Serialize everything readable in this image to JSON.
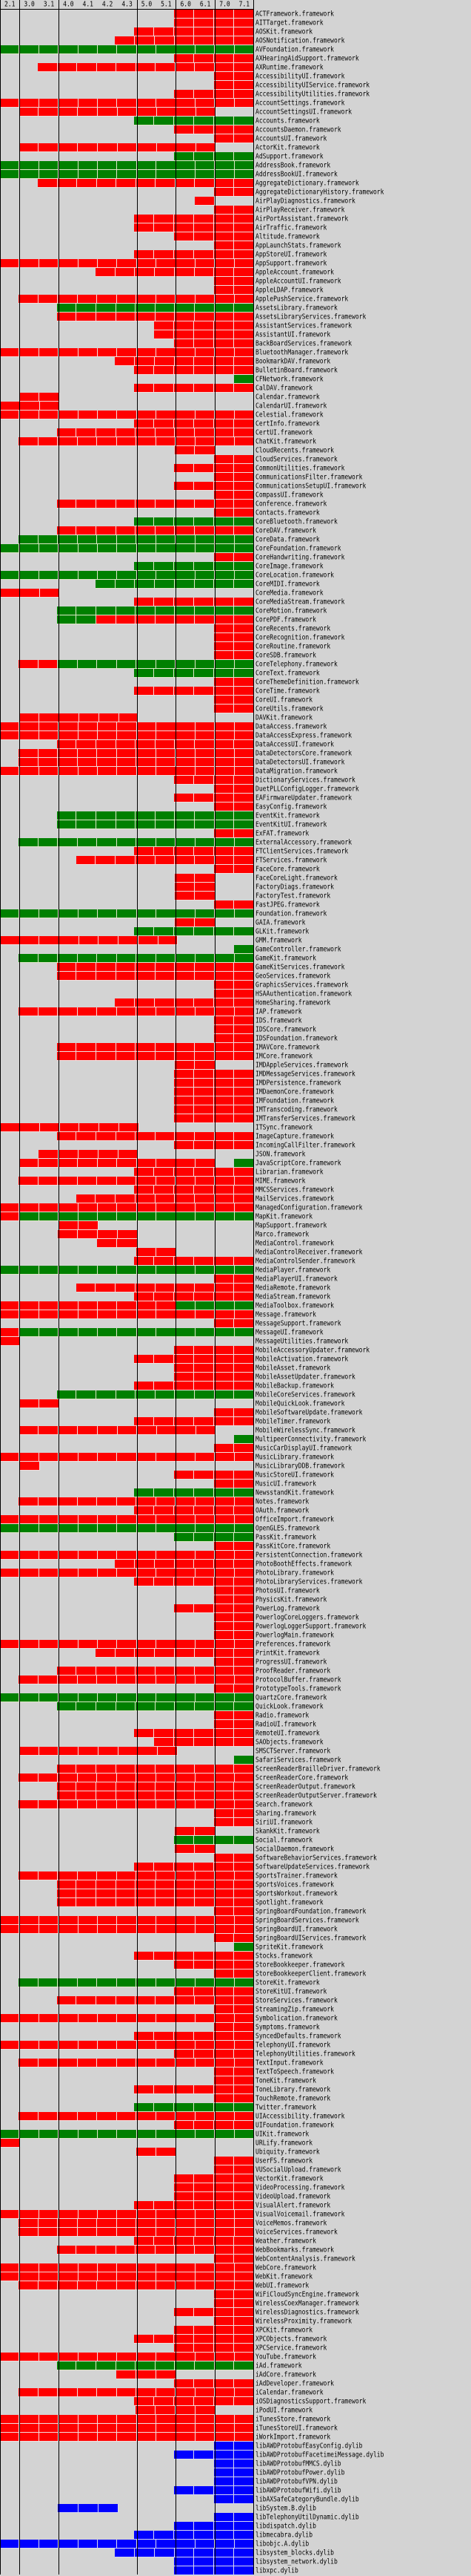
{
  "colors": {
    "private": "#ff0000",
    "public": "#008000",
    "dylib": "#0000ff",
    "absent": "#d3d3d3"
  },
  "versions": [
    "2.1",
    "3.0",
    "3.1",
    "4.0",
    "4.1",
    "4.2",
    "4.3",
    "5.0",
    "5.1",
    "6.0",
    "6.1",
    "7.0",
    "7.1"
  ],
  "rows": [
    [
      "ACTFramework.framework",
      ".........RRRR"
    ],
    [
      "AITTarget.framework",
      ".........RRRR"
    ],
    [
      "AOSKit.framework",
      ".......RRRRRR"
    ],
    [
      "AOSNotification.framework",
      "......RRRRRRR"
    ],
    [
      "AVFoundation.framework",
      "GGGGGGGGGGGGG"
    ],
    [
      "AXHearingAidSupport.framework",
      ".........RRRR"
    ],
    [
      "AXRuntime.framework",
      "..RRRRRRRRRRR"
    ],
    [
      "AccessibilityUI.framework",
      "...........RR"
    ],
    [
      "AccessibilityUIService.framework",
      "...........RR"
    ],
    [
      "AccessibilityUtilities.framework",
      ".........RRRR"
    ],
    [
      "AccountSettings.framework",
      "RRRRRRRRRRRRR"
    ],
    [
      "AccountSettingsUI.framework",
      ".RRRRRRRRRR.."
    ],
    [
      "Accounts.framework",
      ".......GGGGGG"
    ],
    [
      "AccountsDaemon.framework",
      ".........RRRR"
    ],
    [
      "AccountsUI.framework",
      "...........RR"
    ],
    [
      "ActorKit.framework",
      ".RRRRRRRRRR.."
    ],
    [
      "AdSupport.framework",
      ".........GGGG"
    ],
    [
      "AddressBook.framework",
      "GGGGGGGGGGGGG"
    ],
    [
      "AddressBookUI.framework",
      "GGGGGGGGGGGGG"
    ],
    [
      "AggregateDictionary.framework",
      "..RRRRRRRRRRR"
    ],
    [
      "AggregateDictionaryHistory.framework",
      "...........RR"
    ],
    [
      "AirPlayDiagnostics.framework",
      "..........R.."
    ],
    [
      "AirPlayReceiver.framework",
      "...........RR"
    ],
    [
      "AirPortAssistant.framework",
      ".......RRRRRR"
    ],
    [
      "AirTraffic.framework",
      ".......RRRRRR"
    ],
    [
      "Altitude.framework",
      ".........RRRR"
    ],
    [
      "AppLaunchStats.framework",
      "...........RR"
    ],
    [
      "AppStoreUI.framework",
      ".......RRRRRR"
    ],
    [
      "AppSupport.framework",
      "RRRRRRRRRRRRR"
    ],
    [
      "AppleAccount.framework",
      ".....RRRRRRRR"
    ],
    [
      "AppleAccountUI.framework",
      "...........RR"
    ],
    [
      "AppleLDAP.framework",
      "...........RR"
    ],
    [
      "ApplePushService.framework",
      ".RRRRRRRRRRRR"
    ],
    [
      "AssetsLibrary.framework",
      "...GGGGGGGGGG"
    ],
    [
      "AssetsLibraryServices.framework",
      "...RRRRRRRRRR"
    ],
    [
      "AssistantServices.framework",
      "........RRRRR"
    ],
    [
      "AssistantUI.framework",
      "........RRRRR"
    ],
    [
      "BackBoardServices.framework",
      ".........RRRR"
    ],
    [
      "BluetoothManager.framework",
      "RRRRRRRRRRRRR"
    ],
    [
      "BookmarkDAV.framework",
      "......RRRRRRR"
    ],
    [
      "BulletinBoard.framework",
      ".......RRRRRR"
    ],
    [
      "CFNetwork.framework",
      "............G"
    ],
    [
      "CalDAV.framework",
      ".......RRRRRR"
    ],
    [
      "Calendar.framework",
      ".RR.........."
    ],
    [
      "CalendarUI.framework",
      "RRR.........."
    ],
    [
      "Celestial.framework",
      "RRRRRRRRRRRRR"
    ],
    [
      "CertInfo.framework",
      ".......RRRRRR"
    ],
    [
      "CertUI.framework",
      "...RRRRRRRRRR"
    ],
    [
      "ChatKit.framework",
      ".RRRRRRRRRRRR"
    ],
    [
      "CloudRecents.framework",
      ".........RR.."
    ],
    [
      "CloudServices.framework",
      "...........RR"
    ],
    [
      "CommonUtilities.framework",
      ".........RRRR"
    ],
    [
      "CommunicationsFilter.framework",
      "...........RR"
    ],
    [
      "CommunicationsSetupUI.framework",
      ".........RRRR"
    ],
    [
      "CompassUI.framework",
      "...........RR"
    ],
    [
      "Conference.framework",
      "...RRRRRRRRRR"
    ],
    [
      "Contacts.framework",
      "...........RR"
    ],
    [
      "CoreBluetooth.framework",
      ".......GGGGGG"
    ],
    [
      "CoreDAV.framework",
      "...RRRRRRRRRR"
    ],
    [
      "CoreData.framework",
      ".GGGGGGGGGGGG"
    ],
    [
      "CoreFoundation.framework",
      "GGGGGGGGGGGGG"
    ],
    [
      "CoreHandwriting.framework",
      "...........RR"
    ],
    [
      "CoreImage.framework",
      ".......GGGGGG"
    ],
    [
      "CoreLocation.framework",
      "GGGGGGGGGGGGG"
    ],
    [
      "CoreMIDI.framework",
      ".....GGGGGGGG"
    ],
    [
      "CoreMedia.framework",
      "RRR.........."
    ],
    [
      "CoreMediaStream.framework",
      ".......RRRRRR"
    ],
    [
      "CoreMotion.framework",
      "...GGGGGGGGGG"
    ],
    [
      "CorePDF.framework",
      "...GGRRRRRRRR"
    ],
    [
      "CoreRecents.framework",
      "...........RR"
    ],
    [
      "CoreRecognition.framework",
      "...........RR"
    ],
    [
      "CoreRoutine.framework",
      "...........RR"
    ],
    [
      "CoreSDB.framework",
      "...........RR"
    ],
    [
      "CoreTelephony.framework",
      ".RRGGGGGGGGGG"
    ],
    [
      "CoreText.framework",
      ".......GGGGGG"
    ],
    [
      "CoreThemeDefinition.framework",
      "...........RR"
    ],
    [
      "CoreTime.framework",
      ".......RRRRRR"
    ],
    [
      "CoreUI.framework",
      "...........RR"
    ],
    [
      "CoreUtils.framework",
      "...........RR"
    ],
    [
      "DAVKit.framework",
      ".RRRRRR......"
    ],
    [
      "DataAccess.framework",
      "RRRRRRRRRRRRR"
    ],
    [
      "DataAccessExpress.framework",
      "RRRRRRRRRRRRR"
    ],
    [
      "DataAccessUI.framework",
      "...RRRRRRRRRR"
    ],
    [
      "DataDetectorsCore.framework",
      ".RRRRRRRRRRRR"
    ],
    [
      "DataDetectorsUI.framework",
      ".RRRRRRRRRRRR"
    ],
    [
      "DataMigration.framework",
      "RRRRRRRRRRRRR"
    ],
    [
      "DictionaryServices.framework",
      ".........RRRR"
    ],
    [
      "DuetPLLConfigLogger.framework",
      "...........RR"
    ],
    [
      "EAFirmwareUpdater.framework",
      ".........RRRR"
    ],
    [
      "EasyConfig.framework",
      "...........RR"
    ],
    [
      "EventKit.framework",
      "...GGGGGGGGGG"
    ],
    [
      "EventKitUI.framework",
      "...GGGGGGGGGG"
    ],
    [
      "ExFAT.framework",
      "...........RR"
    ],
    [
      "ExternalAccessory.framework",
      ".GGGGGGGGGGGG"
    ],
    [
      "FTClientServices.framework",
      ".......RRRRRR"
    ],
    [
      "FTServices.framework",
      "....RRRRRRRRR"
    ],
    [
      "FaceCore.framework",
      "...........RR"
    ],
    [
      "FaceCoreLight.framework",
      ".........RR.."
    ],
    [
      "FactoryDiags.framework",
      ".........RR.."
    ],
    [
      "FactoryTest.framework",
      ".........RR.."
    ],
    [
      "FastJPEG.framework",
      "...........RR"
    ],
    [
      "Foundation.framework",
      "GGGGGGGGGGGGG"
    ],
    [
      "GAIA.framework",
      ".........RR.."
    ],
    [
      "GLKit.framework",
      ".......GGGGGG"
    ],
    [
      "GMM.framework",
      "RRRRRRRRR...."
    ],
    [
      "GameController.framework",
      "............G"
    ],
    [
      "GameKit.framework",
      ".GGGGGGGGGGGG"
    ],
    [
      "GameKitServices.framework",
      "...RRRRRRRRRR"
    ],
    [
      "GeoServices.framework",
      "...RRRRRRRRRR"
    ],
    [
      "GraphicsServices.framework",
      "...........RR"
    ],
    [
      "HSAAuthentication.framework",
      "...........RR"
    ],
    [
      "HomeSharing.framework",
      "......RRRRRRR"
    ],
    [
      "IAP.framework",
      ".RRRRRRRRRRRR"
    ],
    [
      "IDS.framework",
      "...........RR"
    ],
    [
      "IDSCore.framework",
      "...........RR"
    ],
    [
      "IDSFoundation.framework",
      "...........RR"
    ],
    [
      "IMAVCore.framework",
      "...RRRRRRRRRR"
    ],
    [
      "IMCore.framework",
      "...RRRRRRRRRR"
    ],
    [
      "IMDAppleServices.framework",
      ".........RR.."
    ],
    [
      "IMDMessageServices.framework",
      ".........RRRR"
    ],
    [
      "IMDPersistence.framework",
      ".........RRRR"
    ],
    [
      "IMDaemonCore.framework",
      ".........RRRR"
    ],
    [
      "IMFoundation.framework",
      ".........RRRR"
    ],
    [
      "IMTranscoding.framework",
      ".........RRRR"
    ],
    [
      "IMTransferServices.framework",
      ".........RRRR"
    ],
    [
      "ITSync.framework",
      "RRRRRRR......"
    ],
    [
      "ImageCapture.framework",
      "...RRRRRRRRRR"
    ],
    [
      "IncomingCallFilter.framework",
      ".........RRRR"
    ],
    [
      "JSON.framework",
      "..RRRRR......"
    ],
    [
      "JavaScriptCore.framework",
      ".RRRRRRRRRR.G"
    ],
    [
      "Librarian.framework",
      ".......RRRRRR"
    ],
    [
      "MIME.framework",
      ".RRRRRRRRRRRR"
    ],
    [
      "MMCSServices.framework",
      ".......RRRRRR"
    ],
    [
      "MailServices.framework",
      "....RRRRRRRRR"
    ],
    [
      "ManagedConfiguration.framework",
      "RRRRRRRRRRRRR"
    ],
    [
      "MapKit.framework",
      "RGGGGGGGGGGGG"
    ],
    [
      "MapSupport.framework",
      "...RR........"
    ],
    [
      "Marco.framework",
      "...RRRR......"
    ],
    [
      "MediaControl.framework",
      ".....RR......"
    ],
    [
      "MediaControlReceiver.framework",
      ".......RR...."
    ],
    [
      "MediaControlSender.framework",
      ".......RRRRRR"
    ],
    [
      "MediaPlayer.framework",
      "GGGGGGGGGGGGG"
    ],
    [
      "MediaPlayerUI.framework",
      "...........RR"
    ],
    [
      "MediaRemote.framework",
      "....RRRRRRRRR"
    ],
    [
      "MediaStream.framework",
      ".......RRRRRR"
    ],
    [
      "MediaToolbox.framework",
      "RRRRRRRRRGGGG"
    ],
    [
      "Message.framework",
      "RRRRRRRRRRRRR"
    ],
    [
      "MessageSupport.framework",
      "...........RR"
    ],
    [
      "MessageUI.framework",
      "RGGGGGGGGGGGG"
    ],
    [
      "MessageUtilities.framework",
      "R............"
    ],
    [
      "MobileAccessoryUpdater.framework",
      ".........RRRR"
    ],
    [
      "MobileActivation.framework",
      ".......RRRRRR"
    ],
    [
      "MobileAsset.framework",
      ".........RRRR"
    ],
    [
      "MobileAssetUpdater.framework",
      ".........RRRR"
    ],
    [
      "MobileBackup.framework",
      ".......RRRRRR"
    ],
    [
      "MobileCoreServices.framework",
      "...GGGGGGGGGG"
    ],
    [
      "MobileQuickLook.framework",
      ".RR.........."
    ],
    [
      "MobileSoftwareUpdate.framework",
      "...........RR"
    ],
    [
      "MobileTimer.framework",
      ".......RRRRRR"
    ],
    [
      "MobileWirelessSync.framework",
      ".RRRRRRRRRR.."
    ],
    [
      "MultipeerConnectivity.framework",
      "............G"
    ],
    [
      "MusicCarDisplayUI.framework",
      "...........RR"
    ],
    [
      "MusicLibrary.framework",
      "RRRRRRRRRRRRR"
    ],
    [
      "MusicLibraryDDB.framework",
      ".R..........."
    ],
    [
      "MusicStoreUI.framework",
      ".........RRRR"
    ],
    [
      "MusicUI.framework",
      "...........RR"
    ],
    [
      "NewsstandKit.framework",
      ".......GGGGGG"
    ],
    [
      "Notes.framework",
      ".RRRRRRRRRRRR"
    ],
    [
      "OAuth.framework",
      ".......RRRRRR"
    ],
    [
      "OfficeImport.framework",
      "RRRRRRRRRRRRR"
    ],
    [
      "OpenGLES.framework",
      "GGGGGGGGGGGGG"
    ],
    [
      "PassKit.framework",
      ".........GGGG"
    ],
    [
      "PassKitCore.framework",
      "...........RR"
    ],
    [
      "PersistentConnection.framework",
      "RRRRRRRRRRRRR"
    ],
    [
      "PhotoBoothEffects.framework",
      "......RRRRRRR"
    ],
    [
      "PhotoLibrary.framework",
      "RRRRRRRRRRRRR"
    ],
    [
      "PhotoLibraryServices.framework",
      ".......RRRRRR"
    ],
    [
      "PhotosUI.framework",
      "...........RR"
    ],
    [
      "PhysicsKit.framework",
      "...........RR"
    ],
    [
      "PowerLog.framework",
      ".........RRRR"
    ],
    [
      "PowerlogCoreLoggers.framework",
      "...........RR"
    ],
    [
      "PowerlogLoggerSupport.framework",
      "...........RR"
    ],
    [
      "PowerlogMain.framework",
      "...........RR"
    ],
    [
      "Preferences.framework",
      "RRRRRRRRRRRRR"
    ],
    [
      "PrintKit.framework",
      ".....RRRRRRRR"
    ],
    [
      "ProgressUI.framework",
      "...........RR"
    ],
    [
      "ProofReader.framework",
      "...RRRRRRRRRR"
    ],
    [
      "ProtocolBuffer.framework",
      ".RRRRRRRRRRRR"
    ],
    [
      "PrototypeTools.framework",
      "...........RR"
    ],
    [
      "QuartzCore.framework",
      "GGGGGGGGGGGGG"
    ],
    [
      "QuickLook.framework",
      "...GGGGGGGGGG"
    ],
    [
      "Radio.framework",
      "...........RR"
    ],
    [
      "RadioUI.framework",
      "...........RR"
    ],
    [
      "RemoteUI.framework",
      ".......RRRRRR"
    ],
    [
      "SAObjects.framework",
      "........RRRRR"
    ],
    [
      "SMSCTServer.framework",
      ".RRRRRRRR...."
    ],
    [
      "SafariServices.framework",
      "............G"
    ],
    [
      "ScreenReaderBrailleDriver.framework",
      "...RRRRRRRRRR"
    ],
    [
      "ScreenReaderCore.framework",
      ".RRRRRRRRRRRR"
    ],
    [
      "ScreenReaderOutput.framework",
      "...RRRRRRRRRR"
    ],
    [
      "ScreenReaderOutputServer.framework",
      "...RRRRRRRRRR"
    ],
    [
      "Search.framework",
      ".RRRRRRRRRRRR"
    ],
    [
      "Sharing.framework",
      "...........RR"
    ],
    [
      "SiriUI.framework",
      "...........RR"
    ],
    [
      "SkankKit.framework",
      ".........RR.."
    ],
    [
      "Social.framework",
      ".........GGGG"
    ],
    [
      "SocialDaemon.framework",
      ".........RR.."
    ],
    [
      "SoftwareBehaviorServices.framework",
      "...........RR"
    ],
    [
      "SoftwareUpdateServices.framework",
      ".......RRRRRR"
    ],
    [
      "SportsTrainer.framework",
      ".RRRRRRRRRRRR"
    ],
    [
      "SportsVoices.framework",
      "...RRRRRRRRRR"
    ],
    [
      "SportsWorkout.framework",
      "...RRRRRRRRRR"
    ],
    [
      "Spotlight.framework",
      "...RRRRRRRRRR"
    ],
    [
      "SpringBoardFoundation.framework",
      "...........RR"
    ],
    [
      "SpringBoardServices.framework",
      "RRRRRRRRRRRRR"
    ],
    [
      "SpringBoardUI.framework",
      "RRRRRRRRRRRRR"
    ],
    [
      "SpringBoardUIServices.framework",
      "...........RR"
    ],
    [
      "SpriteKit.framework",
      "............G"
    ],
    [
      "Stocks.framework",
      ".......RRRRRR"
    ],
    [
      "StoreBookkeeper.framework",
      ".........RRRR"
    ],
    [
      "StoreBookkeeperClient.framework",
      "...........RR"
    ],
    [
      "StoreKit.framework",
      ".GGGGGGGGGGGG"
    ],
    [
      "StoreKitUI.framework",
      ".........RRRR"
    ],
    [
      "StoreServices.framework",
      "...RRRRRRRRRR"
    ],
    [
      "StreamingZip.framework",
      "...........RR"
    ],
    [
      "Symbolication.framework",
      "RRRRRRRRRRRRR"
    ],
    [
      "Symptoms.framework",
      "...........RR"
    ],
    [
      "SyncedDefaults.framework",
      ".......RRRRRR"
    ],
    [
      "TelephonyUI.framework",
      "RRRRRRRRRRRRR"
    ],
    [
      "TelephonyUtilities.framework",
      ".........RRRR"
    ],
    [
      "TextInput.framework",
      ".RRRRRRRRRRRR"
    ],
    [
      "TextToSpeech.framework",
      "...........RR"
    ],
    [
      "ToneKit.framework",
      "...........RR"
    ],
    [
      "ToneLibrary.framework",
      ".......RRRRRR"
    ],
    [
      "TouchRemote.framework",
      "...........RR"
    ],
    [
      "Twitter.framework",
      ".......GGGGGG"
    ],
    [
      "UIAccessibility.framework",
      ".RRRRRRRRRRRR"
    ],
    [
      "UIFoundation.framework",
      ".........RRRR"
    ],
    [
      "UIKit.framework",
      "GGGGGGGGGGGGG"
    ],
    [
      "URLify.framework",
      "R............"
    ],
    [
      "Ubiquity.framework",
      ".......RR...."
    ],
    [
      "UserFS.framework",
      "...........RR"
    ],
    [
      "VUSocialUpload.framework",
      "...........RR"
    ],
    [
      "VectorKit.framework",
      ".........RRRR"
    ],
    [
      "VideoProcessing.framework",
      ".........RRRR"
    ],
    [
      "VideoUpload.framework",
      ".........RRRR"
    ],
    [
      "VisualAlert.framework",
      ".......RRRRRR"
    ],
    [
      "VisualVoicemail.framework",
      "RRRRRRRRRRRRR"
    ],
    [
      "VoiceMemos.framework",
      ".RRRRRRRRRRRR"
    ],
    [
      "VoiceServices.framework",
      ".RRRRRRRRRRRR"
    ],
    [
      "Weather.framework",
      ".......RRRRRR"
    ],
    [
      "WebBookmarks.framework",
      "...RRRRRRRRRR"
    ],
    [
      "WebContentAnalysis.framework",
      "...........RR"
    ],
    [
      "WebCore.framework",
      "RRRRRRRRRRRRR"
    ],
    [
      "WebKit.framework",
      "RRRRRRRRRRRRR"
    ],
    [
      "WebUI.framework",
      ".RRRRRRRRRRRR"
    ],
    [
      "WiFiCloudSyncEngine.framework",
      "...........RR"
    ],
    [
      "WirelessCoexManager.framework",
      "...........RR"
    ],
    [
      "WirelessDiagnostics.framework",
      ".........RRRR"
    ],
    [
      "WirelessProximity.framework",
      "...........RR"
    ],
    [
      "XPCKit.framework",
      ".........RRRR"
    ],
    [
      "XPCObjects.framework",
      ".......RRRRRR"
    ],
    [
      "XPCService.framework",
      ".........RRRR"
    ],
    [
      "YouTube.framework",
      "RRRRRRRRRRRRR"
    ],
    [
      "iAd.framework",
      "...GGGGGGGGGG"
    ],
    [
      "iAdCore.framework",
      "......RRR...."
    ],
    [
      "iAdDeveloper.framework",
      ".........RRRR"
    ],
    [
      "iCalendar.framework",
      ".RRRRRRRRRRRR"
    ],
    [
      "iOSDiagnosticsSupport.framework",
      ".......RRRRRR"
    ],
    [
      "iPodUI.framework",
      ".......RRRR.."
    ],
    [
      "iTunesStore.framework",
      "RRRRRRRRRRRRR"
    ],
    [
      "iTunesStoreUI.framework",
      "RRRRRRRRRRRRR"
    ],
    [
      "iWorkImport.framework",
      "RRRRRRRRRRRRR"
    ],
    [
      "libAWDProtobufEasyConfig.dylib",
      "...........BB"
    ],
    [
      "libAWDProtobufFacetimeiMessage.dylib",
      ".........BBBB"
    ],
    [
      "libAWDProtobufMMCS.dylib",
      "...........BB"
    ],
    [
      "libAWDProtobufPower.dylib",
      "...........BB"
    ],
    [
      "libAWDProtobufVPN.dylib",
      "...........BB"
    ],
    [
      "libAWDProtobufWifi.dylib",
      ".........BBBB"
    ],
    [
      "libAXSafeCategoryBundle.dylib",
      "...........BB"
    ],
    [
      "libSystem.B.dylib",
      "...BBB......."
    ],
    [
      "libTelephonyUtilDynamic.dylib",
      "...........BB"
    ],
    [
      "libdispatch.dylib",
      ".........BBBB"
    ],
    [
      "libmecabra.dylib",
      ".......BBBBBB"
    ],
    [
      "libobjc.A.dylib",
      "BBBBBBBBBBBBB"
    ],
    [
      "libsystem_blocks.dylib",
      "......BBBBBBB"
    ],
    [
      "libsystem_network.dylib",
      ".........BBBB"
    ],
    [
      "libxpc.dylib",
      ".........BBBB"
    ]
  ]
}
